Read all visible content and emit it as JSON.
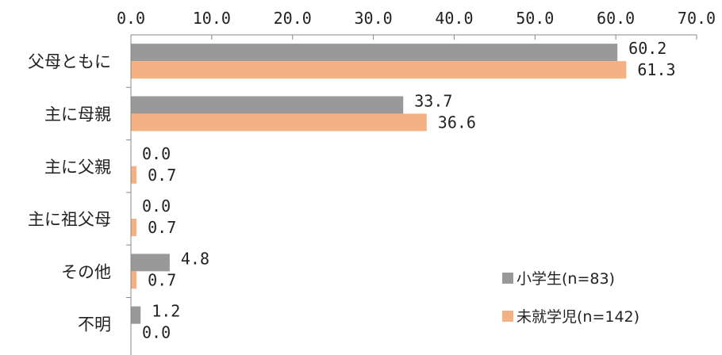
{
  "chart_data": {
    "type": "bar",
    "orientation": "horizontal",
    "categories": [
      "父母ともに",
      "主に母親",
      "主に父親",
      "主に祖父母",
      "その他",
      "不明"
    ],
    "series": [
      {
        "name": "小学生(n=83)",
        "values": [
          60.2,
          33.7,
          0.0,
          0.0,
          4.8,
          1.2
        ],
        "color": "#999999"
      },
      {
        "name": "未就学児(n=142)",
        "values": [
          61.3,
          36.6,
          0.7,
          0.7,
          0.7,
          0.0
        ],
        "color": "#F4B183"
      }
    ],
    "value_labels": [
      [
        "60.2",
        "33.7",
        "0.0",
        "0.0",
        "4.8",
        "1.2"
      ],
      [
        "61.3",
        "36.6",
        "0.7",
        "0.7",
        "0.7",
        "0.0"
      ]
    ],
    "ticks": [
      "0.0",
      "10.0",
      "20.0",
      "30.0",
      "40.0",
      "50.0",
      "60.0",
      "70.0"
    ],
    "xlim": [
      0,
      70
    ],
    "axis_position": "top",
    "grid": false,
    "legend_position": "bottom-right"
  }
}
